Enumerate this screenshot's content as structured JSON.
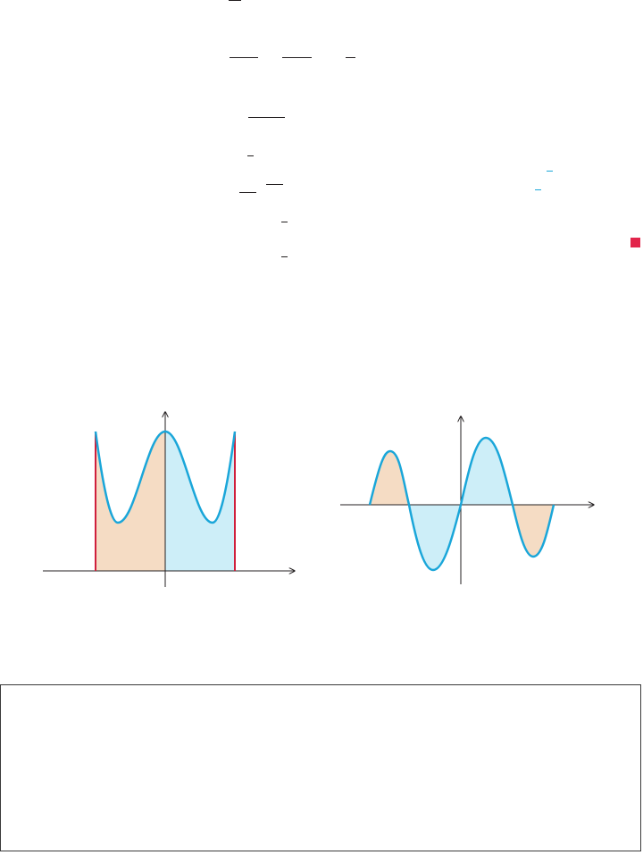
{
  "colors": {
    "curve": "#1aa6d9",
    "boundary": "#cf1f3c",
    "fill_orange": "#f5dcc4",
    "fill_blue": "#cdeef8",
    "axis": "#231f20",
    "marker": "#e2254b"
  },
  "figure_left": {
    "description_name": "even-function-area-figure"
  },
  "figure_right": {
    "description_name": "odd-function-area-figure"
  }
}
